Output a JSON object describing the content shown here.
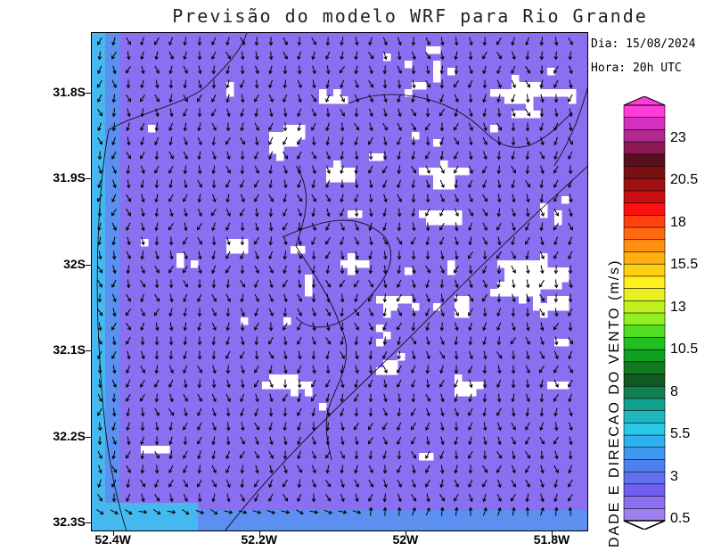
{
  "title": "Previsão do modelo WRF para Rio Grande",
  "info": {
    "date": "Dia: 15/08/2024",
    "time": "Hora: 20h UTC"
  },
  "map": {
    "lon_range": [
      -52.43,
      -51.75
    ],
    "lat_range": [
      -32.31,
      -31.73
    ],
    "x_ticks": [
      {
        "label": "52.4W",
        "lon": -52.4
      },
      {
        "label": "52.2W",
        "lon": -52.2
      },
      {
        "label": "52W",
        "lon": -52.0
      },
      {
        "label": "51.8W",
        "lon": -51.8
      }
    ],
    "y_ticks": [
      {
        "label": "31.8S",
        "lat": -31.8
      },
      {
        "label": "31.9S",
        "lat": -31.9
      },
      {
        "label": "32S",
        "lat": -32.0
      },
      {
        "label": "32.1S",
        "lat": -32.1
      },
      {
        "label": "32.2S",
        "lat": -32.2
      },
      {
        "label": "32.3S",
        "lat": -32.3
      }
    ],
    "field_colors": {
      "calm": "#ffffff",
      "light": "#8a6ff0",
      "moderate": "#5b8ff0",
      "coastal": "#45b9ef"
    },
    "wind_direction": "predominantly from the north (arrows pointing south), light winds 0.5–3 m/s"
  },
  "colorbar": {
    "title": "DADE E DIRECAO DO VENTO (m/s)",
    "labels": [
      "23",
      "20.5",
      "18",
      "15.5",
      "13",
      "10.5",
      "8",
      "5.5",
      "3",
      "0.5"
    ],
    "colors": [
      "#ff3bd9",
      "#d62fc0",
      "#b02890",
      "#8c1a55",
      "#5a0f20",
      "#7a1010",
      "#a01010",
      "#c81010",
      "#ff1010",
      "#ff4010",
      "#ff6a10",
      "#ff9010",
      "#ffb010",
      "#ffd010",
      "#ffee20",
      "#e8f020",
      "#c0f020",
      "#90f020",
      "#50e020",
      "#20c020",
      "#10a020",
      "#107a20",
      "#105a20",
      "#108050",
      "#10a090",
      "#20b8c0",
      "#28c8e8",
      "#30b0f0",
      "#4098f0",
      "#5080f0",
      "#6070f0",
      "#7060f0",
      "#8a6ff0",
      "#a080f0"
    ]
  }
}
